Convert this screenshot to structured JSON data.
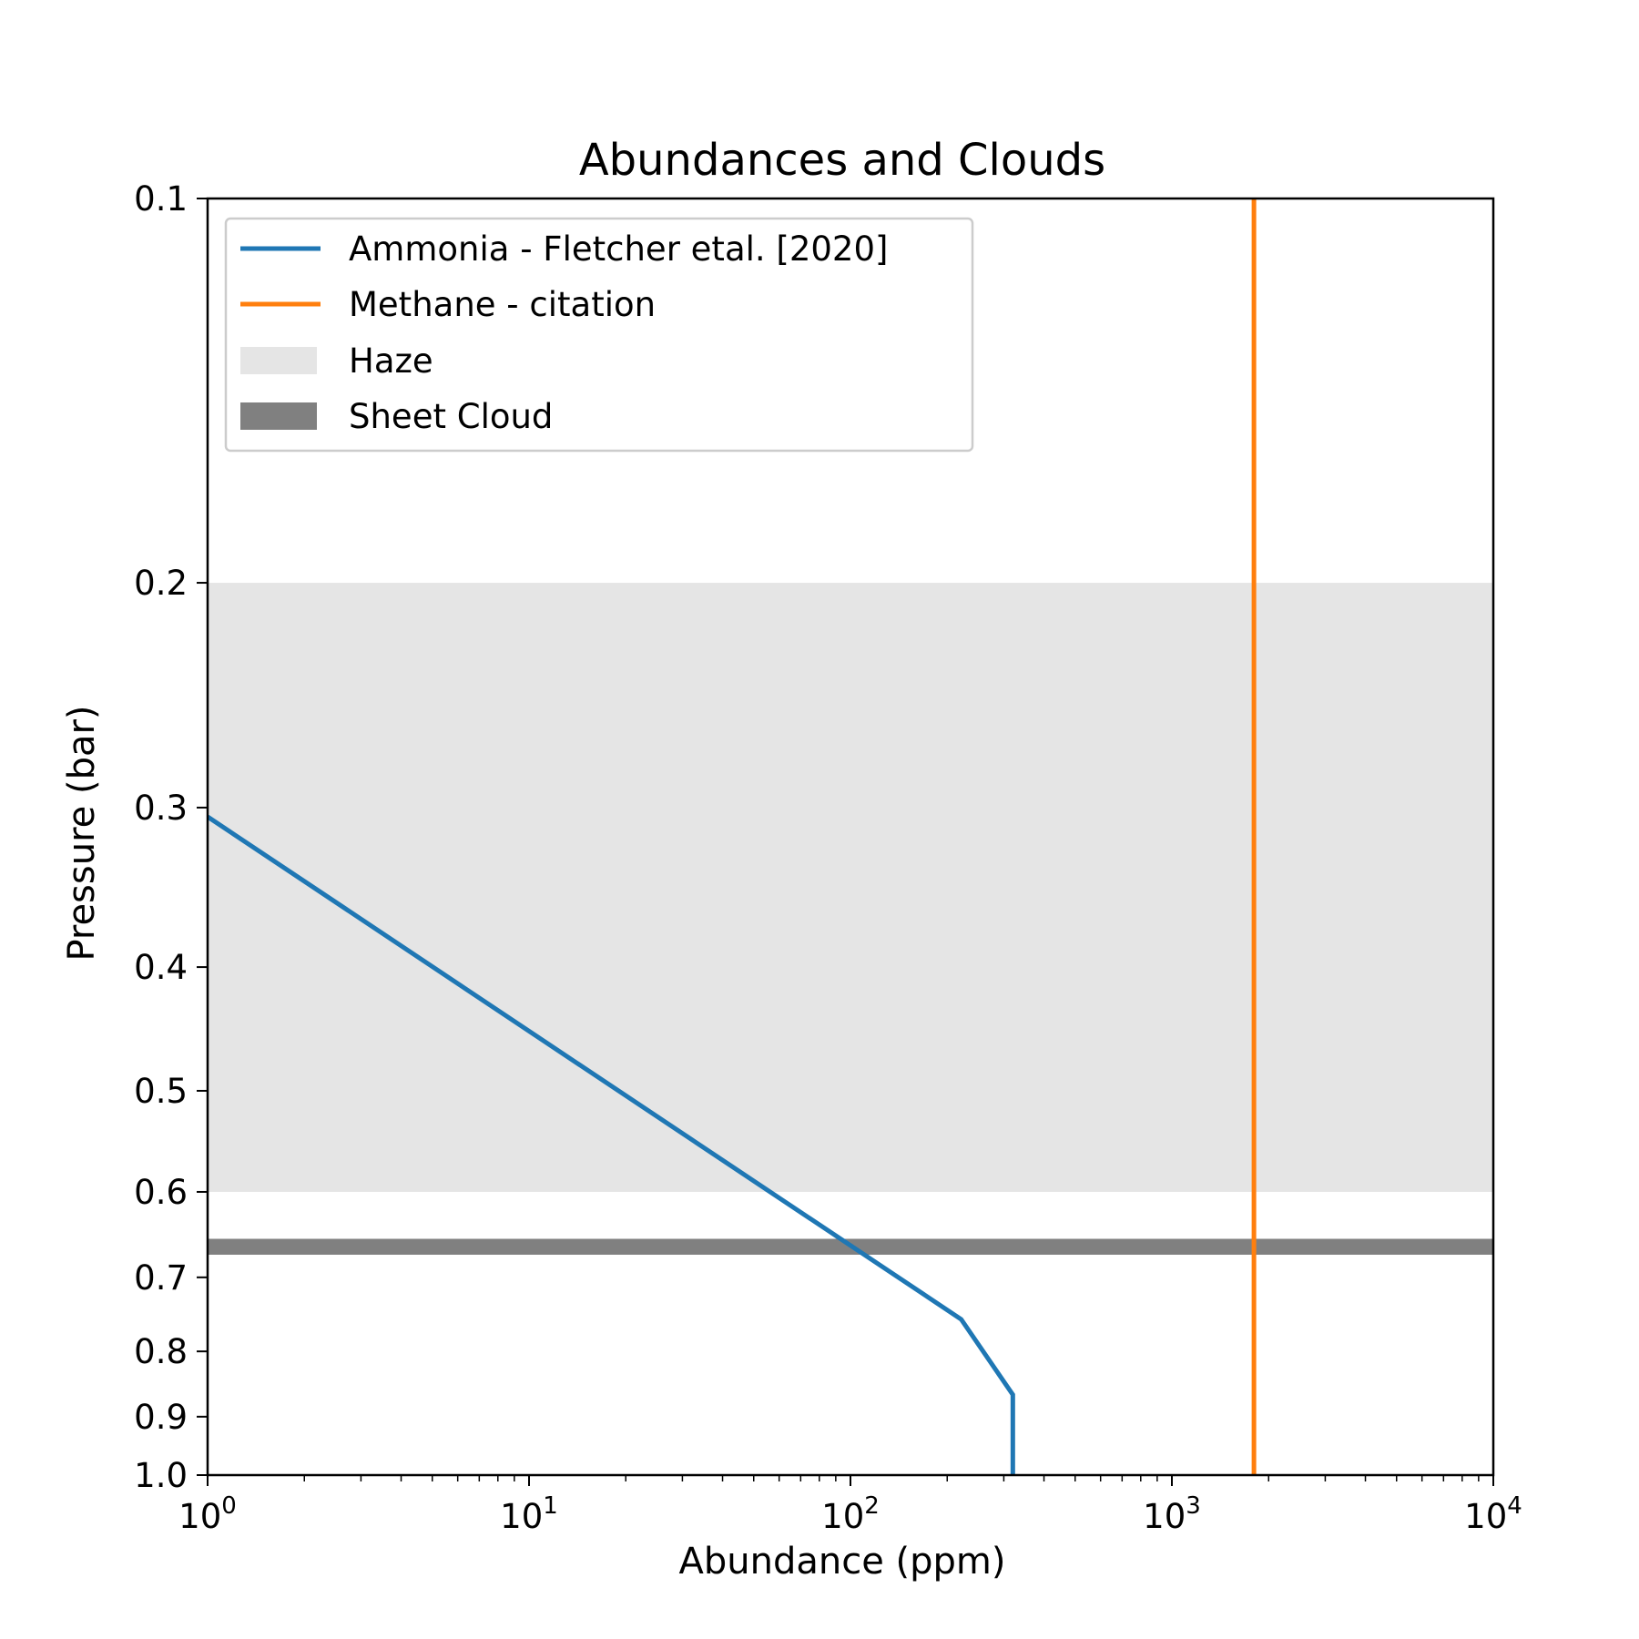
{
  "chart_data": {
    "type": "line",
    "title": "Abundances and Clouds",
    "xlabel": "Abundance (ppm)",
    "ylabel": "Pressure (bar)",
    "xscale": "log",
    "yscale": "log",
    "y_inverted": true,
    "xlim": [
      1,
      10000
    ],
    "ylim": [
      1.0,
      0.1
    ],
    "x_ticks": [
      {
        "value": 1,
        "base": "10",
        "exp": "0"
      },
      {
        "value": 10,
        "base": "10",
        "exp": "1"
      },
      {
        "value": 100,
        "base": "10",
        "exp": "2"
      },
      {
        "value": 1000,
        "base": "10",
        "exp": "3"
      },
      {
        "value": 10000,
        "base": "10",
        "exp": "4"
      }
    ],
    "y_ticks": [
      {
        "value": 0.1,
        "label": "0.1"
      },
      {
        "value": 0.2,
        "label": "0.2"
      },
      {
        "value": 0.3,
        "label": "0.3"
      },
      {
        "value": 0.4,
        "label": "0.4"
      },
      {
        "value": 0.5,
        "label": "0.5"
      },
      {
        "value": 0.6,
        "label": "0.6"
      },
      {
        "value": 0.7,
        "label": "0.7"
      },
      {
        "value": 0.8,
        "label": "0.8"
      },
      {
        "value": 0.9,
        "label": "0.9"
      },
      {
        "value": 1.0,
        "label": "1.0"
      }
    ],
    "grid": false,
    "legend_position": "top-left",
    "series": [
      {
        "name": "Ammonia - Fletcher etal. [2020]",
        "color": "#1f77b4",
        "points": [
          [
            1,
            0.305
          ],
          [
            221,
            0.755
          ],
          [
            320,
            0.865
          ],
          [
            320,
            1.0
          ]
        ]
      },
      {
        "name": "Methane - citation",
        "color": "#ff7f0e",
        "points": [
          [
            1800,
            0.1
          ],
          [
            1800,
            1.0
          ]
        ]
      }
    ],
    "bands": [
      {
        "name": "Haze",
        "color": "#e5e5e5",
        "p_top": 0.2,
        "p_bottom": 0.6
      },
      {
        "name": "Sheet Cloud",
        "color": "#808080",
        "p_top": 0.653,
        "p_bottom": 0.672
      }
    ]
  }
}
